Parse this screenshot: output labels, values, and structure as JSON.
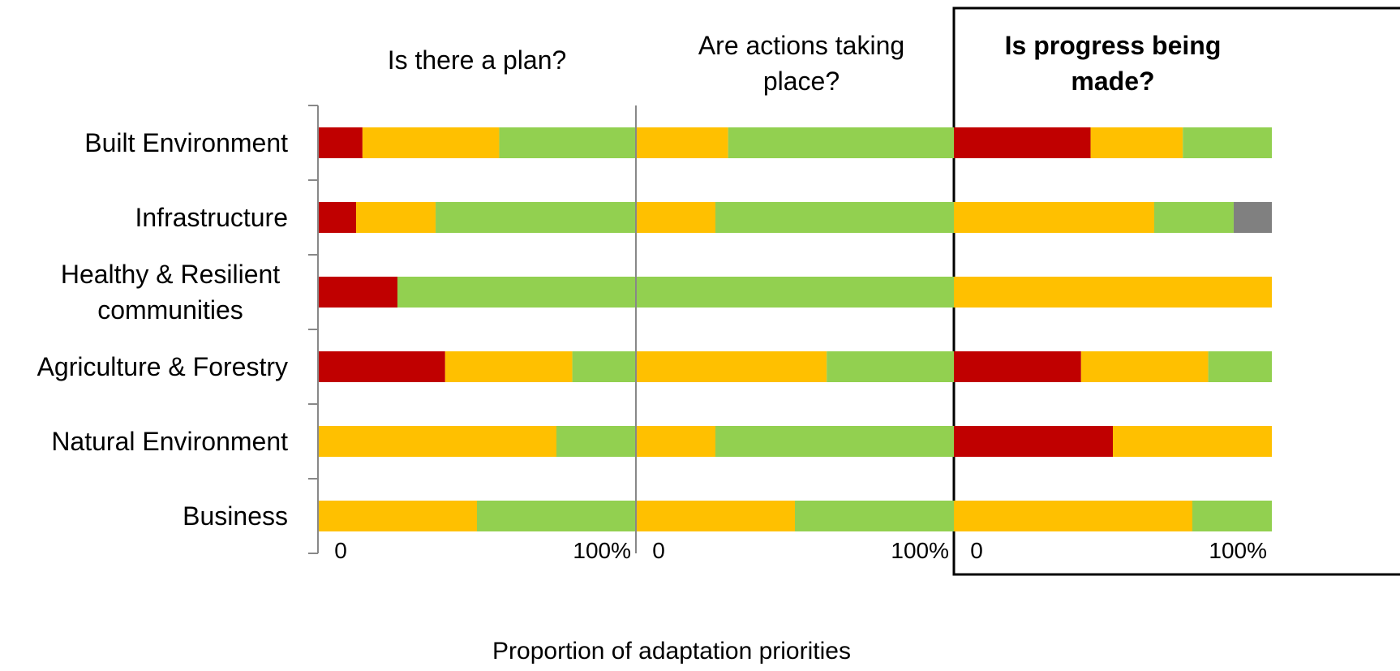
{
  "chart_data": {
    "type": "bar",
    "stacked": true,
    "xlabel": "Proportion of adaptation priorities",
    "categories": [
      [
        "Built Environment"
      ],
      [
        "Infrastructure"
      ],
      [
        "Healthy & Resilient",
        "communities"
      ],
      [
        "Agriculture & Forestry"
      ],
      [
        "Natural Environment"
      ],
      [
        "Business"
      ]
    ],
    "segment_colors": [
      "#c00000",
      "#ffc000",
      "#92d050",
      "#808080"
    ],
    "panels": [
      {
        "title_lines": [
          "Is there a plan?"
        ],
        "bold": false,
        "framed": false,
        "tick_labels": [
          "0",
          "100%"
        ],
        "rows": [
          [
            14,
            43,
            43,
            0
          ],
          [
            12,
            25,
            63,
            0
          ],
          [
            25,
            0,
            75,
            0
          ],
          [
            40,
            40,
            20,
            0
          ],
          [
            0,
            75,
            25,
            0
          ],
          [
            0,
            50,
            50,
            0
          ]
        ]
      },
      {
        "title_lines": [
          "Are actions taking",
          "place?"
        ],
        "bold": false,
        "framed": false,
        "tick_labels": [
          "0",
          "100%"
        ],
        "rows": [
          [
            0,
            29,
            71,
            0
          ],
          [
            0,
            25,
            75,
            0
          ],
          [
            0,
            0,
            100,
            0
          ],
          [
            0,
            60,
            40,
            0
          ],
          [
            0,
            25,
            75,
            0
          ],
          [
            0,
            50,
            50,
            0
          ]
        ]
      },
      {
        "title_lines": [
          "Is progress being",
          "made?"
        ],
        "bold": true,
        "framed": true,
        "tick_labels": [
          "0",
          "100%"
        ],
        "rows": [
          [
            43,
            29,
            28,
            0
          ],
          [
            0,
            63,
            25,
            12
          ],
          [
            0,
            100,
            0,
            0
          ],
          [
            40,
            40,
            20,
            0
          ],
          [
            50,
            50,
            0,
            0
          ],
          [
            0,
            75,
            25,
            0
          ]
        ]
      }
    ]
  }
}
